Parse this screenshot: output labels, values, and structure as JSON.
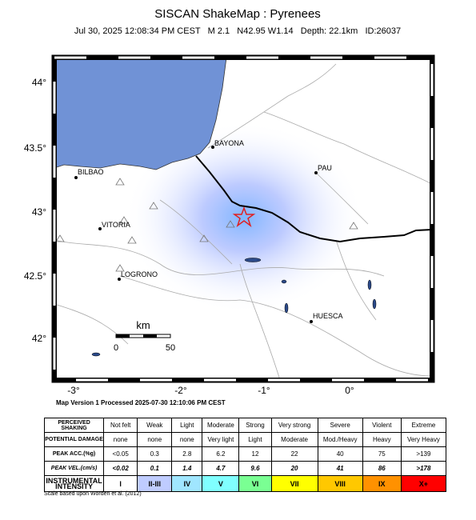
{
  "header": {
    "title": "SISCAN ShakeMap : Pyrenees",
    "subtitle": "Jul 30, 2025 12:08:34 PM CEST   M 2.1   N42.95 W1.14   Depth: 22.1km   ID:26037"
  },
  "map": {
    "lat_labels": [
      "44°",
      "43.5°",
      "43°",
      "42.5°",
      "42°"
    ],
    "lon_labels": [
      "-3°",
      "-2°",
      "-1°",
      "0°"
    ],
    "cities": [
      "BAYONA",
      "PAU",
      "BILBAO",
      "VITORIA",
      "LOGRONO",
      "HUESCA"
    ],
    "scale": {
      "unit": "km",
      "start": 0,
      "end": 50
    },
    "version": "Map Version 1 Processed 2025-07-30 12:10:06 PM CEST"
  },
  "table": {
    "rows": [
      [
        "PERCEIVED SHAKING",
        "Not felt",
        "Weak",
        "Light",
        "Moderate",
        "Strong",
        "Very strong",
        "Severe",
        "Violent",
        "Extreme"
      ],
      [
        "POTENTIAL DAMAGE",
        "none",
        "none",
        "none",
        "Very light",
        "Light",
        "Moderate",
        "Mod./Heavy",
        "Heavy",
        "Very Heavy"
      ],
      [
        "PEAK ACC.(%g)",
        "<0.05",
        "0.3",
        "2.8",
        "6.2",
        "12",
        "22",
        "40",
        "75",
        ">139"
      ],
      [
        "PEAK VEL.(cm/s)",
        "<0.02",
        "0.1",
        "1.4",
        "4.7",
        "9.6",
        "20",
        "41",
        "86",
        ">178"
      ],
      [
        "INSTRUMENTAL INTENSITY",
        "I",
        "II-III",
        "IV",
        "V",
        "VI",
        "VII",
        "VIII",
        "IX",
        "X+"
      ]
    ],
    "note": "Scale based upon Worden et al. (2012)"
  }
}
